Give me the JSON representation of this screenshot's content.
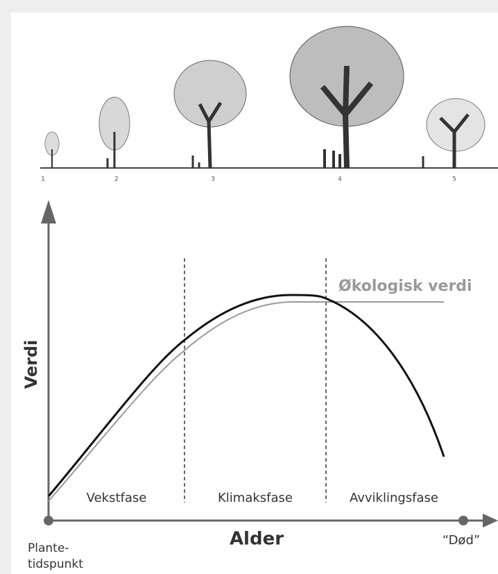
{
  "trees": {
    "labels": [
      "1",
      "2",
      "3",
      "4",
      "5"
    ]
  },
  "axes": {
    "y_label": "Verdi",
    "x_label": "Alder",
    "x_start": [
      "Plante-",
      "tidspunkt"
    ],
    "x_end": "“Død”"
  },
  "curves": {
    "ecological_label": "Økologisk verdi"
  },
  "phases": [
    "Vekstfase",
    "Klimaksfase",
    "Avviklingsfase"
  ]
}
